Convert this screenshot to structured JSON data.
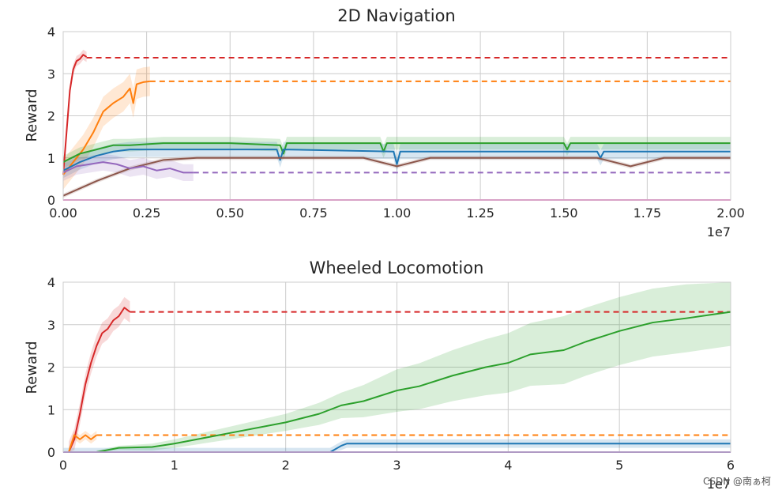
{
  "colors": {
    "red": "#d62728",
    "orange": "#ff7f0e",
    "green": "#2ca02c",
    "blue": "#1f77b4",
    "purple": "#9467bd",
    "brown": "#8c564b",
    "pink": "#e377c2"
  },
  "watermark": "CSDN @南ぁ柯",
  "chart_data": [
    {
      "type": "line",
      "title": "2D Navigation",
      "ylabel": "Reward",
      "xlabel": "",
      "x_multiplier": "1e7",
      "xlim": [
        0,
        2.0
      ],
      "ylim": [
        0,
        4
      ],
      "x_ticks": [
        0,
        0.25,
        0.5,
        0.75,
        1.0,
        1.25,
        1.5,
        1.75,
        2.0
      ],
      "x_tick_labels": [
        "0.00",
        "0.25",
        "0.50",
        "0.75",
        "1.00",
        "1.25",
        "1.50",
        "1.75",
        "2.00"
      ],
      "y_ticks": [
        0,
        1,
        2,
        3,
        4
      ],
      "y_tick_labels": [
        "0",
        "1",
        "2",
        "3",
        "4"
      ],
      "grid": true,
      "series": [
        {
          "name": "red",
          "color": "red",
          "band": 0.12,
          "points": [
            [
              0,
              0.6
            ],
            [
              0.01,
              1.6
            ],
            [
              0.02,
              2.6
            ],
            [
              0.03,
              3.1
            ],
            [
              0.04,
              3.3
            ],
            [
              0.05,
              3.35
            ],
            [
              0.06,
              3.45
            ],
            [
              0.07,
              3.4
            ]
          ],
          "dashed_level": 3.38
        },
        {
          "name": "orange",
          "color": "orange",
          "band": 0.35,
          "points": [
            [
              0,
              0.6
            ],
            [
              0.03,
              0.9
            ],
            [
              0.06,
              1.2
            ],
            [
              0.09,
              1.6
            ],
            [
              0.12,
              2.1
            ],
            [
              0.15,
              2.3
            ],
            [
              0.18,
              2.45
            ],
            [
              0.2,
              2.65
            ],
            [
              0.21,
              2.3
            ],
            [
              0.22,
              2.75
            ],
            [
              0.24,
              2.8
            ],
            [
              0.26,
              2.82
            ]
          ],
          "dashed_level": 2.82
        },
        {
          "name": "green",
          "color": "green",
          "band": 0.15,
          "points": [
            [
              0,
              0.9
            ],
            [
              0.05,
              1.1
            ],
            [
              0.1,
              1.2
            ],
            [
              0.15,
              1.3
            ],
            [
              0.2,
              1.3
            ],
            [
              0.3,
              1.35
            ],
            [
              0.5,
              1.35
            ],
            [
              0.65,
              1.3
            ],
            [
              0.66,
              1.1
            ],
            [
              0.67,
              1.35
            ],
            [
              0.95,
              1.35
            ],
            [
              0.96,
              1.15
            ],
            [
              0.97,
              1.35
            ],
            [
              1.5,
              1.35
            ],
            [
              1.51,
              1.2
            ],
            [
              1.52,
              1.35
            ],
            [
              2.0,
              1.35
            ]
          ]
        },
        {
          "name": "blue",
          "color": "blue",
          "band": 0.18,
          "points": [
            [
              0,
              0.7
            ],
            [
              0.05,
              0.9
            ],
            [
              0.1,
              1.05
            ],
            [
              0.15,
              1.15
            ],
            [
              0.2,
              1.2
            ],
            [
              0.4,
              1.2
            ],
            [
              0.5,
              1.2
            ],
            [
              0.64,
              1.2
            ],
            [
              0.65,
              0.95
            ],
            [
              0.66,
              1.2
            ],
            [
              0.99,
              1.15
            ],
            [
              1.0,
              0.85
            ],
            [
              1.01,
              1.15
            ],
            [
              1.6,
              1.15
            ],
            [
              1.61,
              1.0
            ],
            [
              1.62,
              1.15
            ],
            [
              2.0,
              1.15
            ]
          ]
        },
        {
          "name": "brown",
          "color": "brown",
          "band": 0.05,
          "points": [
            [
              0,
              0.1
            ],
            [
              0.1,
              0.45
            ],
            [
              0.2,
              0.75
            ],
            [
              0.3,
              0.95
            ],
            [
              0.4,
              1.0
            ],
            [
              0.9,
              1.0
            ],
            [
              1.0,
              0.8
            ],
            [
              1.1,
              1.0
            ],
            [
              1.6,
              1.0
            ],
            [
              1.7,
              0.8
            ],
            [
              1.8,
              1.0
            ],
            [
              2.0,
              1.0
            ]
          ]
        },
        {
          "name": "purple",
          "color": "purple",
          "band": 0.2,
          "points": [
            [
              0,
              0.65
            ],
            [
              0.04,
              0.8
            ],
            [
              0.08,
              0.85
            ],
            [
              0.12,
              0.9
            ],
            [
              0.16,
              0.85
            ],
            [
              0.2,
              0.75
            ],
            [
              0.24,
              0.8
            ],
            [
              0.28,
              0.7
            ],
            [
              0.32,
              0.75
            ],
            [
              0.36,
              0.65
            ],
            [
              0.39,
              0.65
            ]
          ],
          "dashed_level": 0.65
        },
        {
          "name": "pink",
          "color": "pink",
          "band": 0,
          "points": [
            [
              0,
              0.0
            ],
            [
              2.0,
              0.0
            ]
          ]
        }
      ]
    },
    {
      "type": "line",
      "title": "Wheeled Locomotion",
      "ylabel": "Reward",
      "xlabel": "",
      "x_multiplier": "1e7",
      "xlim": [
        0,
        6
      ],
      "ylim": [
        0,
        4
      ],
      "x_ticks": [
        0,
        1,
        2,
        3,
        4,
        5,
        6
      ],
      "x_tick_labels": [
        "0",
        "1",
        "2",
        "3",
        "4",
        "5",
        "6"
      ],
      "y_ticks": [
        0,
        1,
        2,
        3,
        4
      ],
      "y_tick_labels": [
        "0",
        "1",
        "2",
        "3",
        "4"
      ],
      "grid": true,
      "series": [
        {
          "name": "red",
          "color": "red",
          "band": 0.25,
          "points": [
            [
              0.05,
              0.0
            ],
            [
              0.1,
              0.3
            ],
            [
              0.15,
              0.9
            ],
            [
              0.2,
              1.6
            ],
            [
              0.25,
              2.1
            ],
            [
              0.3,
              2.5
            ],
            [
              0.35,
              2.8
            ],
            [
              0.4,
              2.9
            ],
            [
              0.45,
              3.1
            ],
            [
              0.5,
              3.2
            ],
            [
              0.55,
              3.4
            ],
            [
              0.6,
              3.3
            ]
          ],
          "dashed_level": 3.3
        },
        {
          "name": "orange",
          "color": "orange",
          "band": 0.1,
          "points": [
            [
              0.05,
              0.0
            ],
            [
              0.1,
              0.4
            ],
            [
              0.15,
              0.3
            ],
            [
              0.2,
              0.4
            ],
            [
              0.25,
              0.3
            ],
            [
              0.3,
              0.4
            ]
          ],
          "dashed_level": 0.4
        },
        {
          "name": "green",
          "color": "green",
          "band_points": [
            [
              0,
              0.02
            ],
            [
              0.5,
              0.05
            ],
            [
              1,
              0.1
            ],
            [
              1.5,
              0.15
            ],
            [
              2,
              0.2
            ],
            [
              2.5,
              0.3
            ],
            [
              3,
              0.5
            ],
            [
              3.5,
              0.6
            ],
            [
              4,
              0.7
            ],
            [
              4.5,
              0.8
            ],
            [
              5,
              0.8
            ],
            [
              5.5,
              0.8
            ],
            [
              6,
              0.8
            ]
          ],
          "points": [
            [
              0.3,
              0.0
            ],
            [
              0.5,
              0.1
            ],
            [
              0.8,
              0.12
            ],
            [
              1.0,
              0.2
            ],
            [
              1.2,
              0.3
            ],
            [
              1.5,
              0.45
            ],
            [
              2.0,
              0.7
            ],
            [
              2.3,
              0.9
            ],
            [
              2.5,
              1.1
            ],
            [
              2.7,
              1.2
            ],
            [
              3.0,
              1.45
            ],
            [
              3.2,
              1.55
            ],
            [
              3.5,
              1.8
            ],
            [
              3.8,
              2.0
            ],
            [
              4.0,
              2.1
            ],
            [
              4.2,
              2.3
            ],
            [
              4.5,
              2.4
            ],
            [
              4.7,
              2.6
            ],
            [
              5.0,
              2.85
            ],
            [
              5.3,
              3.05
            ],
            [
              5.6,
              3.15
            ],
            [
              6.0,
              3.3
            ]
          ]
        },
        {
          "name": "blue",
          "color": "blue",
          "band": 0.1,
          "points": [
            [
              0,
              0.0
            ],
            [
              2.4,
              0.0
            ],
            [
              2.5,
              0.15
            ],
            [
              2.55,
              0.2
            ],
            [
              6.0,
              0.2
            ]
          ]
        },
        {
          "name": "purple",
          "color": "purple",
          "band": 0,
          "points": [
            [
              0,
              0.0
            ],
            [
              6.0,
              0.0
            ]
          ],
          "dashed_level": 0.02
        }
      ]
    }
  ]
}
